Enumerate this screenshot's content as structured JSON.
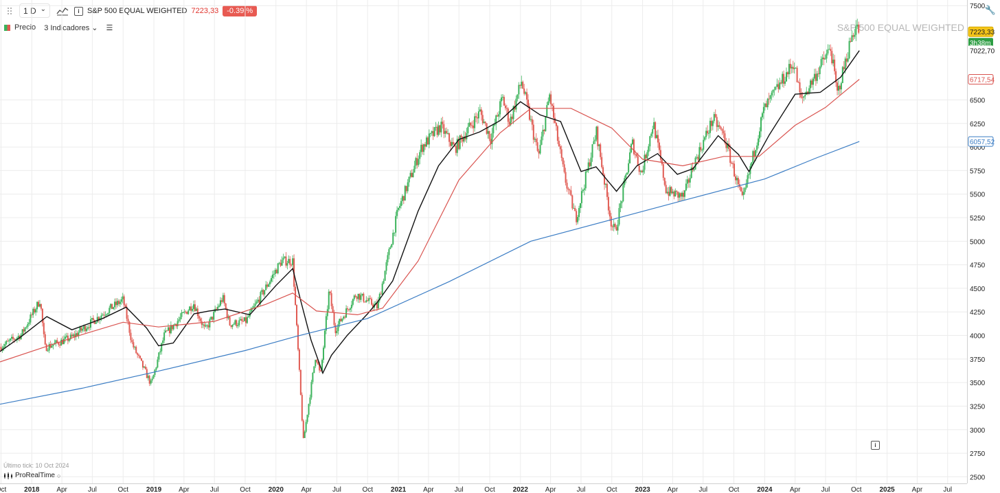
{
  "toolbar": {
    "timeframe": "1 D",
    "timeframe_caret": "⌄",
    "symbol_name": "S&P 500 EQUAL WEIGHTED",
    "last_price": "7223,33",
    "change_pct": "-0.39 %",
    "legend_label": "Precio",
    "indicators_label": "3 Indicadores ⌄"
  },
  "footer": {
    "last_tick": "Último tick: 10 Oct 2024",
    "brand": "ProRealTime"
  },
  "chart_data": {
    "type": "candlestick",
    "title": "S&P 500 EQUAL WEIGHTED",
    "ylim": [
      2430,
      7560
    ],
    "y_ticks": [
      2500,
      2750,
      3000,
      3250,
      3500,
      3750,
      4000,
      4250,
      4500,
      4750,
      5000,
      5250,
      5500,
      5750,
      6000,
      6250,
      6500,
      7500
    ],
    "x_ticks": [
      "Oct",
      "2018",
      "Apr",
      "Jul",
      "Oct",
      "2019",
      "Apr",
      "Jul",
      "Oct",
      "2020",
      "Apr",
      "Jul",
      "Oct",
      "2021",
      "Apr",
      "Jul",
      "Oct",
      "2022",
      "Apr",
      "Jul",
      "Oct",
      "2023",
      "Apr",
      "Jul",
      "Oct",
      "2024",
      "Apr",
      "Jul",
      "Oct",
      "2025",
      "Apr",
      "Jul"
    ],
    "x_tick_bold": [
      "2018",
      "2019",
      "2020",
      "2021",
      "2022",
      "2023",
      "2024",
      "2025"
    ],
    "x_range": [
      "2017-09-28",
      "2025-08-28"
    ],
    "price_key": [
      [
        "2017-10-01",
        3880
      ],
      [
        "2017-12-01",
        4010
      ],
      [
        "2018-01-26",
        4380
      ],
      [
        "2018-02-09",
        3870
      ],
      [
        "2018-05-01",
        3980
      ],
      [
        "2018-08-01",
        4230
      ],
      [
        "2018-10-01",
        4380
      ],
      [
        "2018-10-29",
        3900
      ],
      [
        "2018-12-24",
        3480
      ],
      [
        "2019-02-01",
        4000
      ],
      [
        "2019-04-30",
        4340
      ],
      [
        "2019-06-03",
        4050
      ],
      [
        "2019-07-26",
        4400
      ],
      [
        "2019-08-15",
        4120
      ],
      [
        "2019-10-03",
        4150
      ],
      [
        "2020-01-17",
        4790
      ],
      [
        "2020-02-20",
        4790
      ],
      [
        "2020-03-23",
        2880
      ],
      [
        "2020-04-29",
        3800
      ],
      [
        "2020-05-13",
        3560
      ],
      [
        "2020-06-08",
        4480
      ],
      [
        "2020-06-26",
        4060
      ],
      [
        "2020-08-28",
        4440
      ],
      [
        "2020-10-30",
        4300
      ],
      [
        "2020-12-31",
        5330
      ],
      [
        "2021-03-12",
        6000
      ],
      [
        "2021-05-07",
        6220
      ],
      [
        "2021-06-18",
        5980
      ],
      [
        "2021-09-02",
        6370
      ],
      [
        "2021-10-04",
        6090
      ],
      [
        "2021-11-08",
        6520
      ],
      [
        "2021-11-30",
        6260
      ],
      [
        "2022-01-04",
        6700
      ],
      [
        "2022-02-24",
        5900
      ],
      [
        "2022-03-29",
        6550
      ],
      [
        "2022-05-12",
        5690
      ],
      [
        "2022-06-16",
        5240
      ],
      [
        "2022-08-16",
        6160
      ],
      [
        "2022-09-30",
        5180
      ],
      [
        "2022-10-12",
        5100
      ],
      [
        "2022-12-01",
        6050
      ],
      [
        "2022-12-28",
        5710
      ],
      [
        "2023-02-02",
        6260
      ],
      [
        "2023-03-13",
        5530
      ],
      [
        "2023-05-04",
        5470
      ],
      [
        "2023-06-01",
        5800
      ],
      [
        "2023-07-31",
        6300
      ],
      [
        "2023-09-01",
        6120
      ],
      [
        "2023-10-27",
        5420
      ],
      [
        "2023-12-29",
        6390
      ],
      [
        "2024-03-28",
        6900
      ],
      [
        "2024-04-19",
        6490
      ],
      [
        "2024-07-16",
        7050
      ],
      [
        "2024-08-05",
        6560
      ],
      [
        "2024-09-19",
        7200
      ],
      [
        "2024-10-01",
        7280
      ],
      [
        "2024-10-10",
        7223
      ]
    ],
    "series": [
      {
        "name": "Precio",
        "type": "candlestick",
        "up_color": "#3bb35b",
        "down_color": "#e05a52"
      },
      {
        "type": "line",
        "color": "#111111",
        "last_value": "7022,70",
        "values": [
          [
            "2017-09-28",
            3830
          ],
          [
            "2017-12-01",
            3990
          ],
          [
            "2018-02-15",
            4200
          ],
          [
            "2018-05-01",
            4060
          ],
          [
            "2018-08-01",
            4180
          ],
          [
            "2018-10-10",
            4300
          ],
          [
            "2018-12-10",
            4080
          ],
          [
            "2019-01-15",
            3890
          ],
          [
            "2019-02-28",
            3920
          ],
          [
            "2019-05-01",
            4230
          ],
          [
            "2019-06-15",
            4260
          ],
          [
            "2019-08-01",
            4280
          ],
          [
            "2019-10-15",
            4220
          ],
          [
            "2020-01-01",
            4530
          ],
          [
            "2020-02-20",
            4710
          ],
          [
            "2020-03-15",
            4370
          ],
          [
            "2020-04-15",
            3950
          ],
          [
            "2020-05-20",
            3600
          ],
          [
            "2020-06-15",
            3790
          ],
          [
            "2020-08-01",
            4000
          ],
          [
            "2020-10-01",
            4230
          ],
          [
            "2020-11-01",
            4360
          ],
          [
            "2020-12-15",
            4580
          ],
          [
            "2021-03-01",
            5320
          ],
          [
            "2021-05-01",
            5800
          ],
          [
            "2021-07-01",
            6080
          ],
          [
            "2021-09-01",
            6160
          ],
          [
            "2021-11-01",
            6280
          ],
          [
            "2022-01-01",
            6480
          ],
          [
            "2022-03-01",
            6340
          ],
          [
            "2022-05-01",
            6270
          ],
          [
            "2022-07-01",
            5740
          ],
          [
            "2022-08-15",
            5790
          ],
          [
            "2022-10-15",
            5530
          ],
          [
            "2022-12-15",
            5800
          ],
          [
            "2023-02-15",
            5930
          ],
          [
            "2023-04-15",
            5710
          ],
          [
            "2023-06-01",
            5770
          ],
          [
            "2023-08-15",
            6120
          ],
          [
            "2023-10-15",
            5920
          ],
          [
            "2023-11-15",
            5740
          ],
          [
            "2024-01-15",
            6130
          ],
          [
            "2024-04-01",
            6560
          ],
          [
            "2024-06-15",
            6580
          ],
          [
            "2024-08-15",
            6740
          ],
          [
            "2024-10-10",
            7023
          ]
        ]
      },
      {
        "type": "line",
        "color": "#d9534f",
        "last_value": "6717,54",
        "values": [
          [
            "2017-09-28",
            3720
          ],
          [
            "2018-06-01",
            4010
          ],
          [
            "2018-10-01",
            4140
          ],
          [
            "2019-01-15",
            4090
          ],
          [
            "2019-07-01",
            4150
          ],
          [
            "2019-12-01",
            4330
          ],
          [
            "2020-02-20",
            4450
          ],
          [
            "2020-05-01",
            4260
          ],
          [
            "2020-09-01",
            4220
          ],
          [
            "2020-11-15",
            4290
          ],
          [
            "2021-03-01",
            4790
          ],
          [
            "2021-07-01",
            5650
          ],
          [
            "2021-11-01",
            6150
          ],
          [
            "2022-02-01",
            6410
          ],
          [
            "2022-06-01",
            6410
          ],
          [
            "2022-10-01",
            6200
          ],
          [
            "2023-01-01",
            5870
          ],
          [
            "2023-05-01",
            5800
          ],
          [
            "2023-09-01",
            5900
          ],
          [
            "2023-12-15",
            5900
          ],
          [
            "2024-04-01",
            6230
          ],
          [
            "2024-07-01",
            6420
          ],
          [
            "2024-10-10",
            6718
          ]
        ]
      },
      {
        "type": "line",
        "color": "#3a7cc4",
        "last_value": "6057,52",
        "values": [
          [
            "2017-09-28",
            3270
          ],
          [
            "2018-06-01",
            3440
          ],
          [
            "2019-01-01",
            3610
          ],
          [
            "2019-10-01",
            3840
          ],
          [
            "2020-03-01",
            3990
          ],
          [
            "2020-10-01",
            4180
          ],
          [
            "2021-06-01",
            4570
          ],
          [
            "2022-02-01",
            5000
          ],
          [
            "2022-10-01",
            5230
          ],
          [
            "2023-06-01",
            5460
          ],
          [
            "2024-01-01",
            5660
          ],
          [
            "2024-06-01",
            5880
          ],
          [
            "2024-10-10",
            6058
          ]
        ]
      }
    ],
    "last_price_label": "7223,33",
    "countdown_label": "3h38m"
  }
}
